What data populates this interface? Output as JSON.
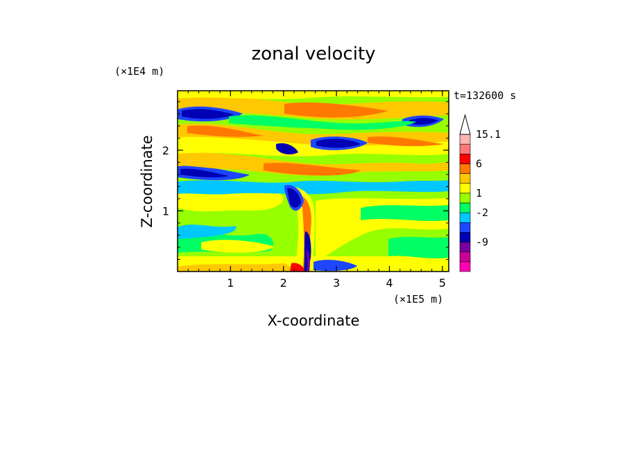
{
  "chart_data": {
    "type": "heatmap",
    "title": "zonal velocity",
    "xlabel": "X-coordinate",
    "ylabel": "Z-coordinate",
    "x_scale_label": "(×1E5 m)",
    "y_scale_label": "(×1E4 m)",
    "time_label": "t=132600 s",
    "xlim": [
      0,
      5.12
    ],
    "ylim": [
      0,
      2.98
    ],
    "x_ticks": [
      {
        "value": 1,
        "label": "1"
      },
      {
        "value": 2,
        "label": "2"
      },
      {
        "value": 3,
        "label": "3"
      },
      {
        "value": 4,
        "label": "4"
      },
      {
        "value": 5,
        "label": "5"
      }
    ],
    "y_ticks": [
      {
        "value": 1,
        "label": "1"
      },
      {
        "value": 2,
        "label": "2"
      }
    ],
    "colorbar": {
      "colors": [
        "#ff00b4",
        "#c80096",
        "#7800a0",
        "#0000b4",
        "#1e46ff",
        "#00c8ff",
        "#00ff64",
        "#96ff00",
        "#ffff00",
        "#ffc800",
        "#ff7800",
        "#ff0000",
        "#ff7878",
        "#ffb4b4"
      ],
      "tick_labels": [
        {
          "level": 3,
          "label": "-9"
        },
        {
          "level": 6,
          "label": "-2"
        },
        {
          "level": 8,
          "label": "1"
        },
        {
          "level": 11,
          "label": "6"
        },
        {
          "level": 14,
          "label": "15.1"
        }
      ]
    }
  }
}
